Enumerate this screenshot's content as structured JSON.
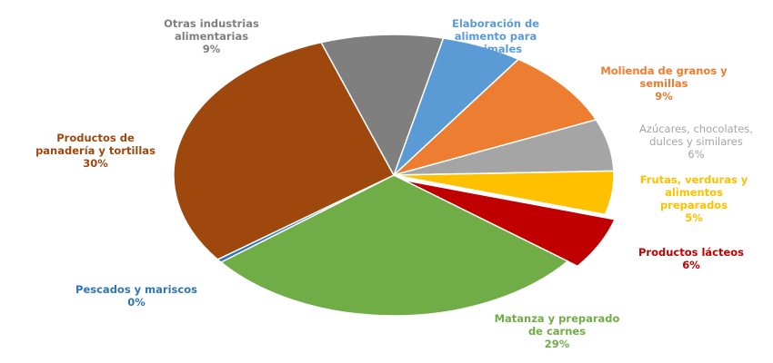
{
  "chart_data": {
    "type": "pie",
    "slices": [
      {
        "label": "Elaboración de\nalimento para\nanimales",
        "percent_label": "6%",
        "value": 6,
        "color": "#5B9BD5"
      },
      {
        "label": "Molienda de granos y\nsemillas",
        "percent_label": "9%",
        "value": 9,
        "color": "#ED7D31"
      },
      {
        "label": "Azúcares, chocolates,\ndulces y similares",
        "percent_label": "6%",
        "value": 6,
        "color": "#A5A5A5"
      },
      {
        "label": "Frutas, verduras y\nalimentos\npreparados",
        "percent_label": "5%",
        "value": 5,
        "color": "#FFC000"
      },
      {
        "label": "Productos lácteos",
        "percent_label": "6%",
        "value": 6,
        "color": "#C00000",
        "exploded": true
      },
      {
        "label": "Matanza y preparado\nde carnes",
        "percent_label": "29%",
        "value": 29,
        "color": "#70AD47"
      },
      {
        "label": "Pescados y mariscos",
        "percent_label": "0%",
        "value": 0.4,
        "color": "#2E75B6"
      },
      {
        "label": "Productos de\npanadería y tortillas",
        "percent_label": "30%",
        "value": 30,
        "color": "#9E480E"
      },
      {
        "label": "Otras industrias\nalimentarias",
        "percent_label": "9%",
        "value": 9,
        "color": "#7F7F7F"
      }
    ]
  }
}
